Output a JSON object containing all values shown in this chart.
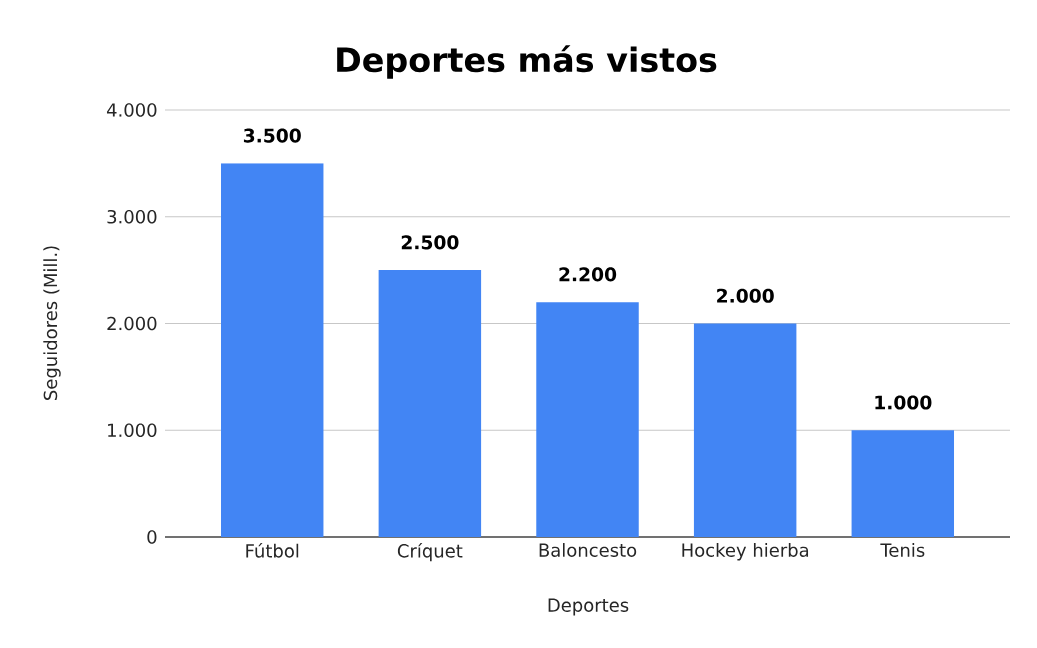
{
  "chart_data": {
    "type": "bar",
    "title": "Deportes más vistos",
    "xlabel": "Deportes",
    "ylabel": "Seguidores (Mill.)",
    "categories": [
      "Fútbol",
      "Críquet",
      "Baloncesto",
      "Hockey hierba",
      "Tenis"
    ],
    "values": [
      3500,
      2500,
      2200,
      2000,
      1000
    ],
    "value_labels": [
      "3.500",
      "2.500",
      "2.200",
      "2.000",
      "1.000"
    ],
    "color": "#4285f4",
    "ylim": [
      0,
      4000
    ],
    "yticks": [
      {
        "value": 0,
        "label": "0"
      },
      {
        "value": 1000,
        "label": "1.000"
      },
      {
        "value": 2000,
        "label": "2.000"
      },
      {
        "value": 3000,
        "label": "3.000"
      },
      {
        "value": 4000,
        "label": "4.000"
      }
    ],
    "grid": "y"
  }
}
